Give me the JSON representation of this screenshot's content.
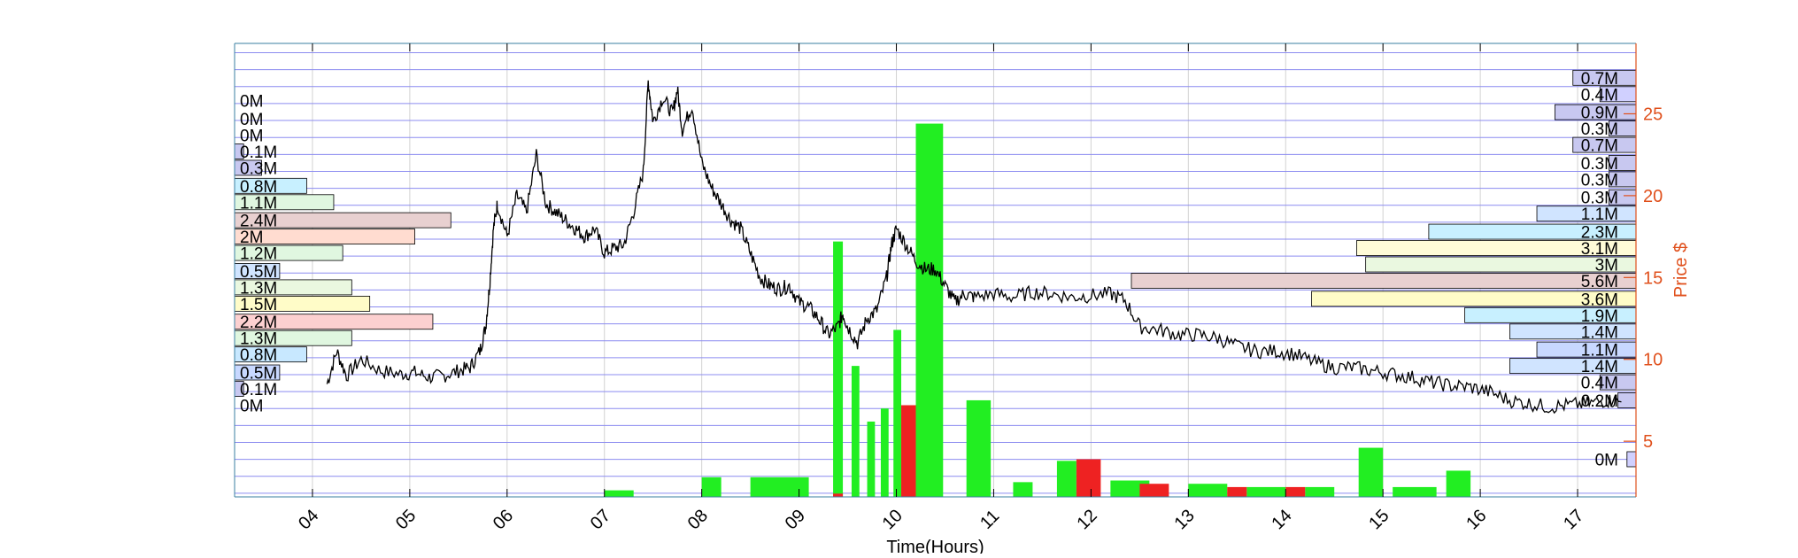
{
  "chart_data": {
    "type": "line",
    "xlabel": "Time(Hours)",
    "ylabel": "Price $",
    "x_tick_labels": [
      "04",
      "05",
      "06",
      "07",
      "08",
      "09",
      "10",
      "11",
      "12",
      "13",
      "14",
      "15",
      "16",
      "17"
    ],
    "x_range": [
      3.2,
      17.6
    ],
    "y_ticks": [
      5,
      10,
      15,
      20,
      25
    ],
    "ylim": [
      1.6,
      29.3
    ],
    "grid": true,
    "price_series": {
      "name": "",
      "x": [
        4.15,
        4.25,
        4.35,
        4.5,
        4.7,
        4.9,
        5.05,
        5.2,
        5.35,
        5.5,
        5.62,
        5.72,
        5.78,
        5.82,
        5.86,
        5.9,
        6.0,
        6.1,
        6.2,
        6.3,
        6.4,
        6.5,
        6.6,
        6.7,
        6.8,
        6.9,
        7.0,
        7.1,
        7.2,
        7.3,
        7.4,
        7.45,
        7.5,
        7.6,
        7.7,
        7.75,
        7.8,
        7.9,
        8.0,
        8.1,
        8.2,
        8.3,
        8.4,
        8.5,
        8.6,
        8.7,
        8.8,
        8.9,
        9.0,
        9.1,
        9.2,
        9.3,
        9.4,
        9.45,
        9.5,
        9.6,
        9.7,
        9.8,
        9.9,
        9.95,
        10.0,
        10.1,
        10.2,
        10.3,
        10.4,
        10.5,
        10.6,
        10.7,
        10.8,
        11.0,
        11.2,
        11.4,
        11.6,
        11.8,
        12.0,
        12.2,
        12.35,
        12.5,
        12.7,
        12.9,
        13.1,
        13.3,
        13.5,
        13.7,
        13.9,
        14.1,
        14.3,
        14.5,
        14.7,
        14.9,
        15.1,
        15.3,
        15.5,
        15.7,
        15.9,
        16.1,
        16.3,
        16.5,
        16.7,
        16.9,
        17.1,
        17.3,
        17.45
      ],
      "y": [
        8.5,
        10.5,
        9.0,
        10.0,
        9.3,
        9.1,
        9.2,
        8.9,
        9.0,
        9.3,
        9.5,
        10.5,
        12.0,
        14.5,
        18.0,
        19.5,
        17.5,
        20.0,
        19.0,
        22.5,
        19.5,
        19.0,
        18.5,
        18.0,
        17.5,
        18.0,
        16.5,
        16.8,
        17.0,
        19.0,
        21.5,
        27.0,
        24.5,
        26.0,
        25.0,
        26.5,
        24.0,
        25.5,
        22.0,
        20.5,
        19.5,
        18.5,
        18.0,
        16.5,
        15.0,
        14.5,
        14.3,
        14.5,
        13.5,
        13.2,
        12.5,
        11.5,
        12.0,
        12.8,
        12.0,
        11.0,
        12.5,
        13.0,
        15.0,
        17.0,
        18.0,
        17.0,
        16.0,
        15.5,
        15.5,
        14.5,
        13.5,
        14.0,
        13.8,
        14.0,
        13.8,
        14.1,
        14.0,
        13.8,
        13.9,
        14.0,
        13.6,
        12.0,
        11.8,
        11.5,
        11.5,
        11.3,
        10.8,
        10.5,
        10.5,
        10.3,
        9.8,
        9.5,
        9.5,
        9.3,
        9.1,
        8.9,
        8.6,
        8.4,
        8.3,
        8.0,
        7.5,
        7.3,
        7.1,
        7.2,
        7.3,
        7.5,
        7.4
      ]
    },
    "volume_bars": {
      "green": [
        {
          "x": [
            7.0,
            7.3
          ],
          "top": 2.0
        },
        {
          "x": [
            8.0,
            8.2
          ],
          "top": 2.8
        },
        {
          "x": [
            8.5,
            9.1
          ],
          "top": 2.8
        },
        {
          "x": [
            9.35,
            9.45
          ],
          "top": 17.2
        },
        {
          "x": [
            9.54,
            9.62
          ],
          "top": 9.6
        },
        {
          "x": [
            9.7,
            9.78
          ],
          "top": 6.2
        },
        {
          "x": [
            9.84,
            9.92
          ],
          "top": 7.0
        },
        {
          "x": [
            9.97,
            10.05
          ],
          "top": 11.8
        },
        {
          "x": [
            10.2,
            10.48
          ],
          "top": 24.4
        },
        {
          "x": [
            10.72,
            10.97
          ],
          "top": 7.5
        },
        {
          "x": [
            11.2,
            11.4
          ],
          "top": 2.5
        },
        {
          "x": [
            11.65,
            11.85
          ],
          "top": 3.8
        },
        {
          "x": [
            12.2,
            12.6
          ],
          "top": 2.6
        },
        {
          "x": [
            13.0,
            13.4
          ],
          "top": 2.4
        },
        {
          "x": [
            13.6,
            14.0
          ],
          "top": 2.2
        },
        {
          "x": [
            14.2,
            14.5
          ],
          "top": 2.2
        },
        {
          "x": [
            14.75,
            15.0
          ],
          "top": 4.6
        },
        {
          "x": [
            15.1,
            15.55
          ],
          "top": 2.2
        },
        {
          "x": [
            15.65,
            15.9
          ],
          "top": 3.2
        }
      ],
      "red": [
        {
          "x": [
            9.35,
            9.45
          ],
          "top": 1.8
        },
        {
          "x": [
            10.05,
            10.2
          ],
          "top": 7.2
        },
        {
          "x": [
            11.85,
            12.1
          ],
          "top": 3.9
        },
        {
          "x": [
            12.5,
            12.8
          ],
          "top": 2.4
        },
        {
          "x": [
            13.4,
            13.6
          ],
          "top": 2.2
        },
        {
          "x": [
            14.0,
            14.2
          ],
          "top": 2.2
        }
      ]
    },
    "volume_profile_left": [
      {
        "label": "0M",
        "price": 7.2,
        "value": 0,
        "color": "#d0d0ff"
      },
      {
        "label": "0.1M",
        "price": 8.2,
        "value": 0.1,
        "color": "#c8c8f0"
      },
      {
        "label": "0.5M",
        "price": 9.2,
        "value": 0.5,
        "color": "#c8d8ff"
      },
      {
        "label": "0.8M",
        "price": 10.3,
        "value": 0.8,
        "color": "#c8e8ff"
      },
      {
        "label": "1.3M",
        "price": 11.3,
        "value": 1.3,
        "color": "#e0f7e0"
      },
      {
        "label": "2.2M",
        "price": 12.3,
        "value": 2.2,
        "color": "#fcd0d0"
      },
      {
        "label": "1.5M",
        "price": 13.4,
        "value": 1.5,
        "color": "#fffcc8"
      },
      {
        "label": "1.3M",
        "price": 14.4,
        "value": 1.3,
        "color": "#eaf8e0"
      },
      {
        "label": "0.5M",
        "price": 15.4,
        "value": 0.5,
        "color": "#d0e4ff"
      },
      {
        "label": "1.2M",
        "price": 16.5,
        "value": 1.2,
        "color": "#e0f7e0"
      },
      {
        "label": "2M",
        "price": 17.5,
        "value": 2.0,
        "color": "#ffdcd0"
      },
      {
        "label": "2.4M",
        "price": 18.5,
        "value": 2.4,
        "color": "#e8d0d0"
      },
      {
        "label": "1.1M",
        "price": 19.6,
        "value": 1.1,
        "color": "#e0f7e0"
      },
      {
        "label": "0.8M",
        "price": 20.6,
        "value": 0.8,
        "color": "#c8f0ff"
      },
      {
        "label": "0.3M",
        "price": 21.7,
        "value": 0.3,
        "color": "#c8c8f0"
      },
      {
        "label": "0.1M",
        "price": 22.7,
        "value": 0.1,
        "color": "#c8c8f0"
      },
      {
        "label": "0M",
        "price": 23.7,
        "value": 0,
        "color": "#d0d0ff"
      },
      {
        "label": "0M",
        "price": 24.7,
        "value": 0,
        "color": "#d0d0ff"
      },
      {
        "label": "0M",
        "price": 25.8,
        "value": 0,
        "color": "#d0d0ff"
      }
    ],
    "volume_profile_right": [
      {
        "label": "0M",
        "price": 3.9,
        "value": 0.1,
        "color": "#d0d0ff"
      },
      {
        "label": "0.2M",
        "price": 7.5,
        "value": 0.2,
        "color": "#c8c8f0"
      },
      {
        "label": "0.4M",
        "price": 8.6,
        "value": 0.4,
        "color": "#c8c8f0"
      },
      {
        "label": "1.4M",
        "price": 9.6,
        "value": 1.4,
        "color": "#d0e4ff"
      },
      {
        "label": "1.1M",
        "price": 10.6,
        "value": 1.1,
        "color": "#c8d8ff"
      },
      {
        "label": "1.4M",
        "price": 11.7,
        "value": 1.4,
        "color": "#d0e4ff"
      },
      {
        "label": "1.9M",
        "price": 12.7,
        "value": 1.9,
        "color": "#c8f0ff"
      },
      {
        "label": "3.6M",
        "price": 13.7,
        "value": 3.6,
        "color": "#fffcc8"
      },
      {
        "label": "5.6M",
        "price": 14.8,
        "value": 5.6,
        "color": "#e8d0d0"
      },
      {
        "label": "3M",
        "price": 15.8,
        "value": 3.0,
        "color": "#eaf8e0"
      },
      {
        "label": "3.1M",
        "price": 16.8,
        "value": 3.1,
        "color": "#fffcd8"
      },
      {
        "label": "2.3M",
        "price": 17.8,
        "value": 2.3,
        "color": "#c8f0ff"
      },
      {
        "label": "1.1M",
        "price": 18.9,
        "value": 1.1,
        "color": "#d0e4ff"
      },
      {
        "label": "0.3M",
        "price": 19.9,
        "value": 0.3,
        "color": "#c8c8f0"
      },
      {
        "label": "0.3M",
        "price": 21.0,
        "value": 0.3,
        "color": "#c8c8f0"
      },
      {
        "label": "0.3M",
        "price": 22.0,
        "value": 0.3,
        "color": "#c8c8f0"
      },
      {
        "label": "0.7M",
        "price": 23.1,
        "value": 0.7,
        "color": "#c8c8f0"
      },
      {
        "label": "0.3M",
        "price": 24.1,
        "value": 0.3,
        "color": "#c8c8f0"
      },
      {
        "label": "0.9M",
        "price": 25.1,
        "value": 0.9,
        "color": "#c8c8f0"
      },
      {
        "label": "0.4M",
        "price": 26.2,
        "value": 0.4,
        "color": "#d0d0ff"
      },
      {
        "label": "0.7M",
        "price": 27.2,
        "value": 0.7,
        "color": "#c8c8f0"
      }
    ],
    "colors": {
      "axis": "#3a7fa0",
      "price_axis": "#e0501c",
      "grid_price": "#8c8cf0",
      "grid_time": "#d2d2d2",
      "price_line": "#000000",
      "volume_up": "#22ee22",
      "volume_down": "#ee2222"
    }
  }
}
